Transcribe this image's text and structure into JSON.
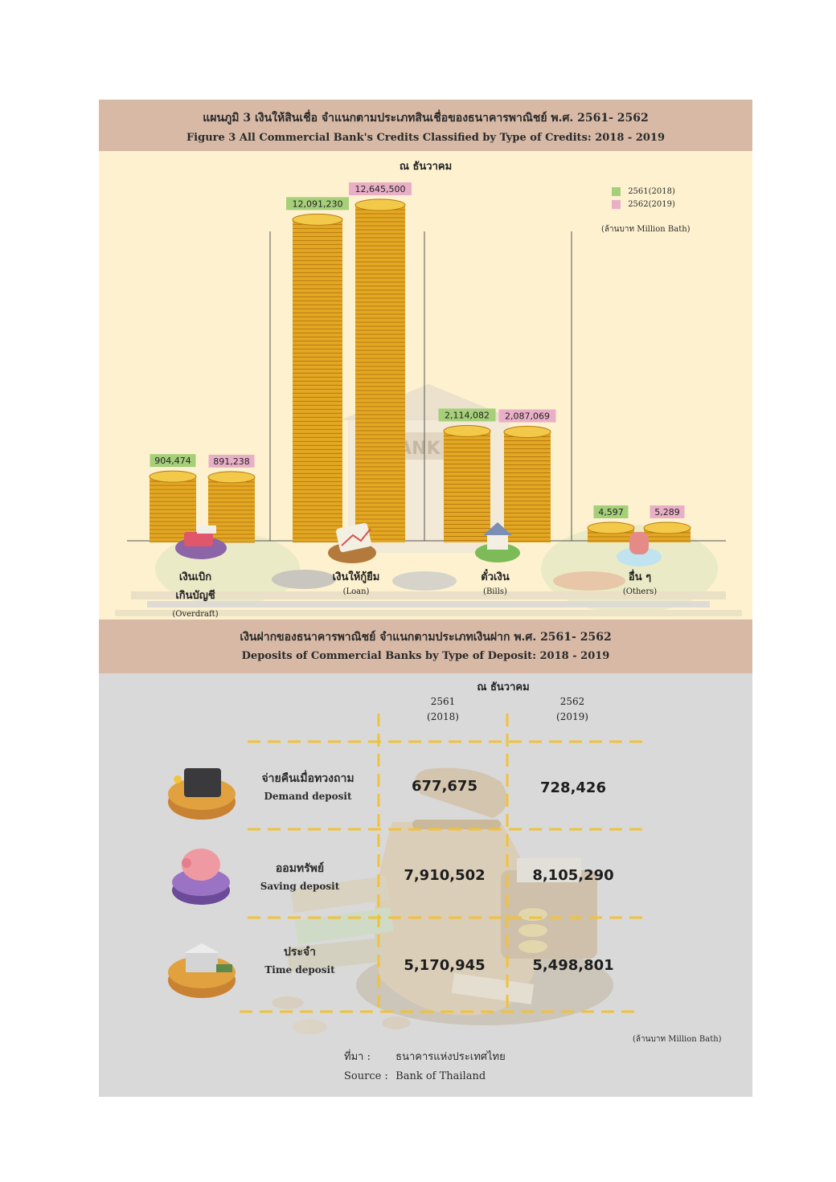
{
  "credits": {
    "title_th": "แผนภูมิ 3 เงินให้สินเชื่อ จำแนกตามประเภทสินเชื่อของธนาคารพาณิชย์ พ.ศ. 2561- 2562",
    "title_en": "Figure   3 All Commercial Bank's Credits Classified by Type of Credits: 2018 - 2019",
    "as_of": "ณ ธันวาคม",
    "unit": "(ล้านบาท Million Bath)",
    "legend": [
      "2561(2018)",
      "2562(2019)"
    ],
    "colors": {
      "2018": "#a6cf7a",
      "2019": "#e9afc6",
      "coin": "#e2a823",
      "coin_dark": "#b87a12"
    }
  },
  "chart_data": {
    "type": "bar",
    "categories": [
      "เงินเบิกเกินบัญชี (Overdraft)",
      "เงินให้กู้ยืม (Loan)",
      "ตั๋วเงิน (Bills)",
      "อื่น ๆ (Others)"
    ],
    "category_th": [
      "เงินเบิก",
      "เงินให้กู้ยืม",
      "ตั๋วเงิน",
      "อื่น ๆ"
    ],
    "category_th2": [
      "เกินบัญชี",
      "",
      "",
      ""
    ],
    "category_en": [
      "(Overdraft)",
      "(Loan)",
      "(Bills)",
      "(Others)"
    ],
    "series": [
      {
        "name": "2561(2018)",
        "values": [
          904474,
          12091230,
          2114082,
          4597
        ],
        "labels": [
          "904,474",
          "12,091,230",
          "2,114,082",
          "4,597"
        ]
      },
      {
        "name": "2562(2019)",
        "values": [
          891238,
          12645500,
          2087069,
          5289
        ],
        "labels": [
          "891,238",
          "12,645,500",
          "2,087,069",
          "5,289"
        ]
      }
    ],
    "ylabel": "(ล้านบาท Million Bath)"
  },
  "deposits": {
    "title_th": "เงินฝากของธนาคารพาณิชย์ จำแนกตามประเภทเงินฝาก พ.ศ. 2561- 2562",
    "title_en": "Deposits of Commercial Banks by Type of Deposit: 2018 - 2019",
    "as_of": "ณ ธันวาคม",
    "year1": "2561",
    "year1_en": "(2018)",
    "year2": "2562",
    "year2_en": "(2019)",
    "rows": [
      {
        "th": "จ่ายคืนเมื่อทวงถาม",
        "en": "Demand deposit",
        "v2018": "677,675",
        "v2019": "728,426",
        "icon": "wallet-icon"
      },
      {
        "th": "ออมทรัพย์",
        "en": "Saving deposit",
        "v2018": "7,910,502",
        "v2019": "8,105,290",
        "icon": "piggy-bank-icon"
      },
      {
        "th": "ประจำ",
        "en": "Time deposit",
        "v2018": "5,170,945",
        "v2019": "5,498,801",
        "icon": "bank-building-icon"
      }
    ],
    "unit": "(ล้านบาท Million Bath)",
    "source_label_th": "ที่มา   :",
    "source_th": "ธนาคารแห่งประเทศไทย",
    "source_label_en": "Source :",
    "source_en": "Bank of Thailand"
  }
}
